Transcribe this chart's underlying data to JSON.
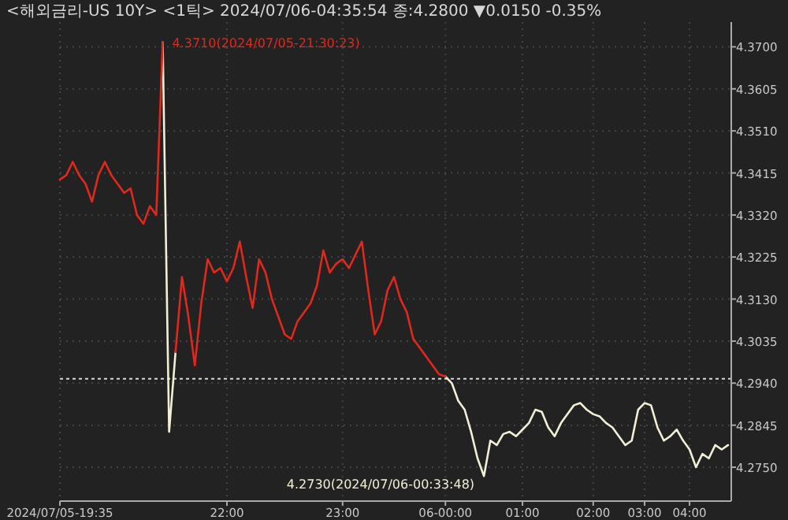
{
  "chart_data": {
    "type": "line",
    "title": "<해외금리-US 10Y> <1틱> 2024/07/06-04:35:54 종:4.2800 ▼0.0150 -0.35%",
    "categories": [
      "2024/07/05-19:35",
      null,
      null,
      null,
      null,
      null,
      null,
      null,
      null,
      null,
      null,
      null,
      null,
      null,
      null,
      null,
      null,
      null,
      null,
      null,
      null,
      null,
      null,
      null,
      null,
      null,
      "22:00",
      null,
      null,
      null,
      null,
      null,
      null,
      null,
      null,
      null,
      null,
      null,
      null,
      null,
      null,
      null,
      null,
      null,
      "23:00",
      null,
      null,
      null,
      null,
      null,
      null,
      null,
      null,
      null,
      null,
      null,
      null,
      null,
      null,
      null,
      "06-00:00",
      null,
      null,
      null,
      null,
      null,
      null,
      null,
      null,
      null,
      null,
      null,
      "01:00",
      null,
      null,
      null,
      null,
      null,
      null,
      null,
      null,
      null,
      null,
      "02:00",
      null,
      null,
      null,
      null,
      null,
      null,
      null,
      "03:00",
      null,
      null,
      null,
      null,
      null,
      null,
      "04:00",
      null,
      null,
      null,
      null,
      null,
      null
    ],
    "series": [
      {
        "color": "#e0281c",
        "values": [
          4.34,
          4.341,
          4.344,
          4.341,
          4.339,
          4.335,
          4.341,
          4.344,
          4.341,
          4.339,
          4.337,
          4.338,
          4.332,
          4.33,
          4.334,
          4.332,
          4.371,
          null,
          4.301,
          4.318,
          4.309,
          4.298,
          4.312,
          4.322,
          4.319,
          4.32,
          4.317,
          4.32,
          4.326,
          4.318,
          4.311,
          4.322,
          4.319,
          4.313,
          4.309,
          4.305,
          4.304,
          4.308,
          4.31,
          4.312,
          4.316,
          4.324,
          4.319,
          4.321,
          4.322,
          4.32,
          4.323,
          4.326,
          4.315,
          4.305,
          4.308,
          4.315,
          4.318,
          4.313,
          4.31,
          4.304,
          4.302,
          4.3,
          4.298,
          4.296,
          4.2955,
          null,
          null,
          null,
          null,
          null,
          null,
          null,
          null,
          null,
          null,
          null,
          null,
          null,
          null,
          null,
          null,
          null,
          null,
          null,
          null,
          null,
          null,
          null,
          null,
          null,
          null,
          null,
          null,
          null,
          null,
          null,
          null,
          null,
          null,
          null,
          null,
          null,
          null,
          null,
          null,
          null,
          null,
          null,
          null
        ]
      },
      {
        "color": "#f2efd6",
        "values": [
          null,
          null,
          null,
          null,
          null,
          null,
          null,
          null,
          null,
          null,
          null,
          null,
          null,
          null,
          null,
          null,
          4.371,
          4.283,
          4.301,
          null,
          null,
          null,
          null,
          null,
          null,
          null,
          null,
          null,
          null,
          null,
          null,
          null,
          null,
          null,
          null,
          null,
          null,
          null,
          null,
          null,
          null,
          null,
          null,
          null,
          null,
          null,
          null,
          null,
          null,
          null,
          null,
          null,
          null,
          null,
          null,
          null,
          null,
          null,
          null,
          null,
          4.2955,
          4.294,
          4.29,
          4.288,
          4.283,
          4.277,
          4.273,
          4.281,
          4.28,
          4.2825,
          4.283,
          4.282,
          4.2835,
          4.285,
          4.288,
          4.2875,
          4.284,
          4.282,
          4.285,
          4.287,
          4.289,
          4.2895,
          4.288,
          4.287,
          4.2865,
          4.285,
          4.284,
          4.282,
          4.28,
          4.281,
          4.288,
          4.2895,
          4.289,
          4.284,
          4.281,
          4.282,
          4.2835,
          4.281,
          4.279,
          4.275,
          4.278,
          4.277,
          4.28,
          4.279,
          4.28
        ]
      }
    ],
    "ylim": [
      4.2677,
      4.3756
    ],
    "yticks": [
      {
        "value": 4.275,
        "label": "4.2750"
      },
      {
        "value": 4.2845,
        "label": "4.2845"
      },
      {
        "value": 4.294,
        "label": "4.2940"
      },
      {
        "value": 4.3035,
        "label": "4.3035"
      },
      {
        "value": 4.313,
        "label": "4.3130"
      },
      {
        "value": 4.3225,
        "label": "4.3225"
      },
      {
        "value": 4.332,
        "label": "4.3320"
      },
      {
        "value": 4.3415,
        "label": "4.3415"
      },
      {
        "value": 4.351,
        "label": "4.3510"
      },
      {
        "value": 4.3605,
        "label": "4.3605"
      },
      {
        "value": 4.37,
        "label": "4.3700"
      }
    ],
    "ref_lines": [
      {
        "axis": "y",
        "value": 4.295,
        "color": "#d8d8d8",
        "line_style": "dotted"
      }
    ],
    "annotations": [
      "4.3710(2024/07/05-21:30:23)",
      "4.2730(2024/07/06-00:33:48)"
    ],
    "grid": true,
    "line_style": "solid",
    "marker": "none"
  }
}
